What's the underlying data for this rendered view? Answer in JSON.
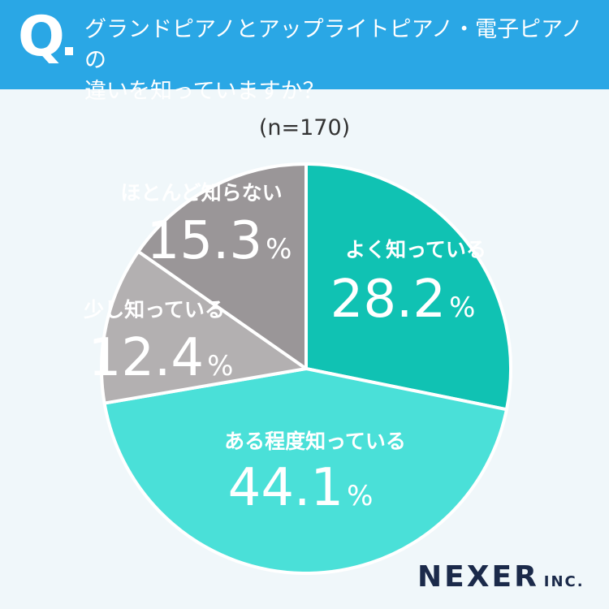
{
  "header": {
    "q_mark": "Q",
    "question_line1": "グランドピアノとアップライトピアノ・電子ピアノの",
    "question_line2": "違いを知っていますか？"
  },
  "sample": "(n=170)",
  "colors": {
    "header_bg": "#2aa7e5",
    "page_bg": "#f0f7fa",
    "slice_well_known": "#10c2b3",
    "slice_somewhat": "#4ae0d8",
    "slice_little": "#b3b0b1",
    "slice_barely": "#9a9698"
  },
  "chart_data": {
    "type": "pie",
    "start": "12 o'clock, clockwise",
    "slices": [
      {
        "label": "よく知っている",
        "value": 28.2,
        "display": "28.2",
        "unit": "%"
      },
      {
        "label": "ある程度知っている",
        "value": 44.1,
        "display": "44.1",
        "unit": "%"
      },
      {
        "label": "少し知っている",
        "value": 12.4,
        "display": "12.4",
        "unit": "%"
      },
      {
        "label": "ほとんど知らない",
        "value": 15.3,
        "display": "15.3",
        "unit": "%"
      }
    ]
  },
  "brand": {
    "name": "NEXER",
    "suffix": "INC."
  }
}
